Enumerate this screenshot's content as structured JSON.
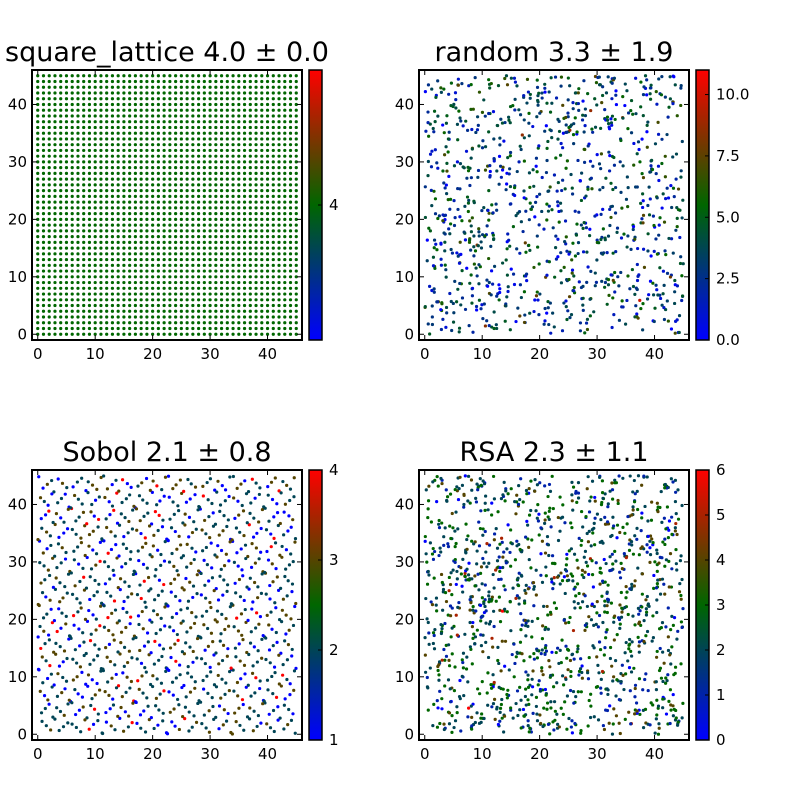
{
  "chart_data": [
    {
      "type": "scatter",
      "title": "square_lattice 4.0 ± 0.0",
      "xlim": [
        -1,
        46
      ],
      "ylim": [
        -1,
        46
      ],
      "xticks": [
        "0",
        "10",
        "20",
        "30",
        "40"
      ],
      "yticks": [
        "0",
        "10",
        "20",
        "30",
        "40"
      ],
      "points": {
        "pattern": "square_lattice",
        "grid_min": 0,
        "grid_max": 45,
        "step": 1,
        "value": 4
      },
      "colorbar": {
        "min": 3.999,
        "max": 4.001,
        "ticks": [
          "4"
        ],
        "tick_values": [
          4
        ]
      },
      "colormap": [
        "#0000ff",
        "#006600",
        "#ff0000"
      ],
      "grid": false
    },
    {
      "type": "scatter",
      "title": "random 3.3 ± 1.9",
      "xlim": [
        -1,
        46
      ],
      "ylim": [
        -1,
        46
      ],
      "xticks": [
        "0",
        "10",
        "20",
        "30",
        "40"
      ],
      "yticks": [
        "0",
        "10",
        "20",
        "30",
        "40"
      ],
      "points": {
        "pattern": "random",
        "count": 1024,
        "value_mean": 3.3,
        "value_sd": 1.9,
        "value_range": [
          0,
          11
        ]
      },
      "colorbar": {
        "min": 0,
        "max": 11,
        "ticks": [
          "0.0",
          "2.5",
          "5.0",
          "7.5",
          "10.0"
        ],
        "tick_values": [
          0,
          2.5,
          5,
          7.5,
          10
        ]
      },
      "colormap": [
        "#0000ff",
        "#006600",
        "#ff0000"
      ],
      "grid": false
    },
    {
      "type": "scatter",
      "title": "Sobol 2.1 ± 0.8",
      "xlim": [
        -1,
        46
      ],
      "ylim": [
        -1,
        46
      ],
      "xticks": [
        "0",
        "10",
        "20",
        "30",
        "40"
      ],
      "yticks": [
        "0",
        "10",
        "20",
        "30",
        "40"
      ],
      "points": {
        "pattern": "sobol",
        "count": 1024,
        "value_mean": 2.1,
        "value_sd": 0.8,
        "value_range": [
          1,
          4
        ]
      },
      "colorbar": {
        "min": 1,
        "max": 4,
        "ticks": [
          "1",
          "2",
          "3",
          "4"
        ],
        "tick_values": [
          1,
          2,
          3,
          4
        ]
      },
      "colormap": [
        "#0000ff",
        "#006600",
        "#ff0000"
      ],
      "grid": false
    },
    {
      "type": "scatter",
      "title": "RSA 2.3 ± 1.1",
      "xlim": [
        -1,
        46
      ],
      "ylim": [
        -1,
        46
      ],
      "xticks": [
        "0",
        "10",
        "20",
        "30",
        "40"
      ],
      "yticks": [
        "0",
        "10",
        "20",
        "30",
        "40"
      ],
      "points": {
        "pattern": "rsa",
        "count": 1300,
        "value_mean": 2.3,
        "value_sd": 1.1,
        "value_range": [
          0,
          6
        ]
      },
      "colorbar": {
        "min": 0,
        "max": 6,
        "ticks": [
          "0",
          "1",
          "2",
          "3",
          "4",
          "5",
          "6"
        ],
        "tick_values": [
          0,
          1,
          2,
          3,
          4,
          5,
          6
        ]
      },
      "colormap": [
        "#0000ff",
        "#006600",
        "#ff0000"
      ],
      "grid": false
    }
  ]
}
